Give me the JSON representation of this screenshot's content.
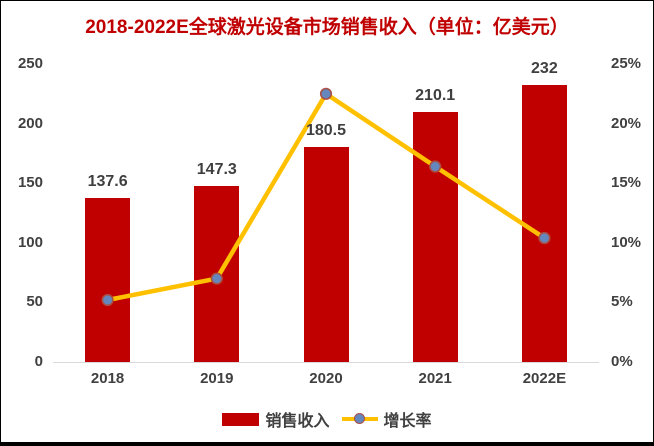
{
  "title_bar": {
    "text": "2018-2022E全球激光设备市场销售收入（单位：亿美元）"
  },
  "chart_data": {
    "type": "bar",
    "title": "2018-2022E全球激光设备市场销售收入（单位：亿美元）",
    "categories": [
      "2018",
      "2019",
      "2020",
      "2021",
      "2022E"
    ],
    "series": [
      {
        "name": "销售收入",
        "type": "bar",
        "axis": "left",
        "values": [
          137.6,
          147.3,
          180.5,
          210.1,
          232
        ],
        "data_labels": [
          "137.6",
          "147.3",
          "180.5",
          "210.1",
          "232"
        ],
        "color": "#C00000"
      },
      {
        "name": "增长率",
        "type": "line",
        "axis": "right",
        "values_pct": [
          5.2,
          7.0,
          22.5,
          16.4,
          10.4
        ],
        "color": "#FFC000",
        "marker_fill": "#6487BE",
        "marker_stroke": "#AA4F45"
      }
    ],
    "left_axis": {
      "min": 0,
      "max": 250,
      "ticks": [
        "0",
        "50",
        "100",
        "150",
        "200",
        "250"
      ]
    },
    "right_axis": {
      "min": 0,
      "max": 25,
      "ticks": [
        "0%",
        "5%",
        "10%",
        "15%",
        "20%",
        "25%"
      ]
    },
    "grid": false,
    "legend_position": "bottom",
    "colors": {
      "title": "#C00000",
      "axis_text": "#404040",
      "data_label_text": "#3F3F3F",
      "axis_line": "#D9D9D9",
      "frame_border": "#000000",
      "background": "#FFFFFF"
    }
  },
  "legend": {
    "items": [
      {
        "label": "销售收入",
        "swatch": "bar"
      },
      {
        "label": "增长率",
        "swatch": "line-marker"
      }
    ]
  }
}
